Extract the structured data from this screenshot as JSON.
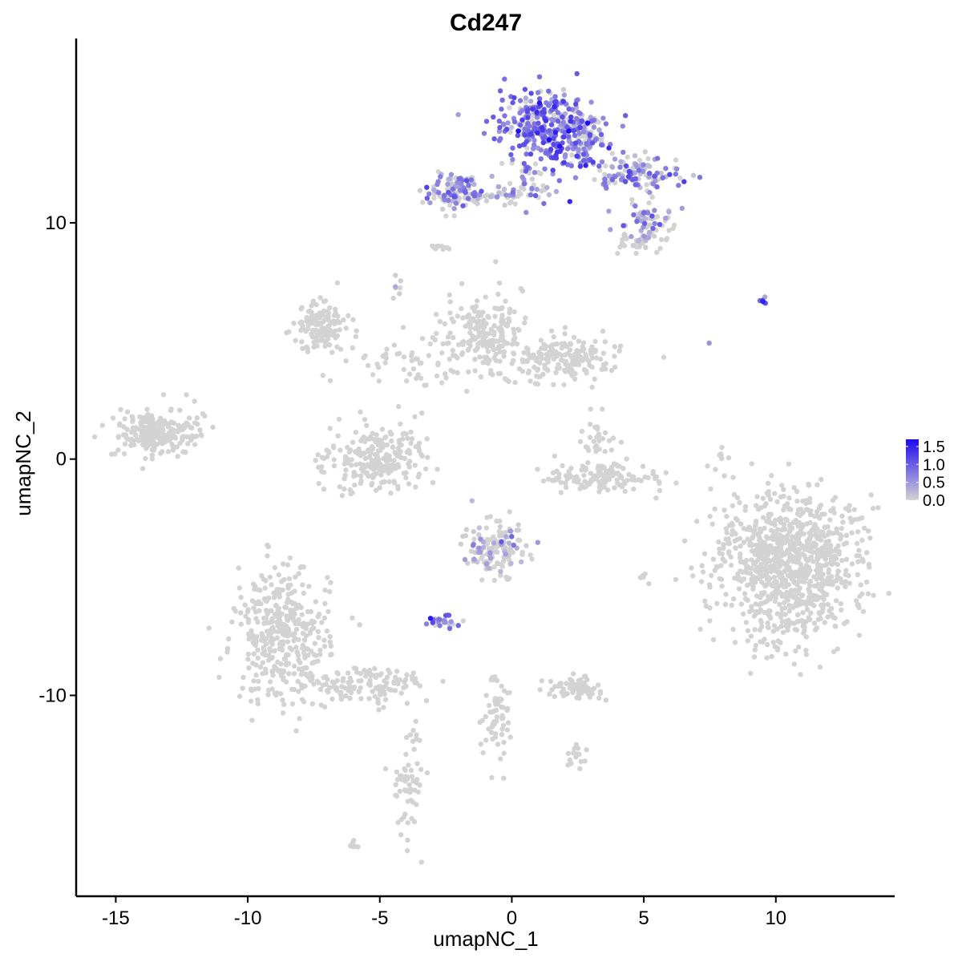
{
  "chart_data": {
    "type": "scatter",
    "title": "Cd247",
    "xlabel": "umapNC_1",
    "ylabel": "umapNC_2",
    "xlim": [
      -16.5,
      14.5
    ],
    "ylim": [
      -18.5,
      17.8
    ],
    "x_ticks": [
      -15,
      -10,
      -5,
      0,
      5,
      10
    ],
    "x_tick_labels": [
      "-15",
      "-10",
      "-5",
      "0",
      "5",
      "10"
    ],
    "y_ticks": [
      -10,
      0,
      10
    ],
    "y_tick_labels": [
      "-10",
      "0",
      "10"
    ],
    "grid": false,
    "legend_position": "right",
    "color_scale": {
      "low_color": "#d3d3d3",
      "high_color": "#1f0af0",
      "min": 0.0,
      "max": 1.7,
      "ticks": [
        1.5,
        1.0,
        0.5,
        0.0
      ],
      "tick_labels": [
        "1.5",
        "1.0",
        "0.5",
        "0.0"
      ]
    },
    "clusters": [
      {
        "cx": 1.2,
        "cy": 14.2,
        "sx": 0.8,
        "sy": 0.8,
        "n": 260,
        "expr": 0.85
      },
      {
        "cx": 2.5,
        "cy": 13.6,
        "sx": 0.6,
        "sy": 0.7,
        "n": 120,
        "expr": 0.8
      },
      {
        "cx": 4.5,
        "cy": 12.0,
        "sx": 0.9,
        "sy": 0.4,
        "n": 120,
        "expr": 0.55
      },
      {
        "cx": 5.2,
        "cy": 10.1,
        "sx": 0.6,
        "sy": 0.4,
        "n": 60,
        "expr": 0.6
      },
      {
        "cx": 4.8,
        "cy": 9.2,
        "sx": 0.4,
        "sy": 0.3,
        "n": 30,
        "expr": 0.1
      },
      {
        "cx": -2.3,
        "cy": 11.4,
        "sx": 0.5,
        "sy": 0.4,
        "n": 90,
        "expr": 0.55
      },
      {
        "cx": -0.8,
        "cy": 11.2,
        "sx": 0.9,
        "sy": 0.2,
        "n": 50,
        "expr": 0.5
      },
      {
        "cx": 0.6,
        "cy": 11.5,
        "sx": 0.5,
        "sy": 0.6,
        "n": 40,
        "expr": 0.55
      },
      {
        "cx": 9.5,
        "cy": 6.7,
        "sx": 0.1,
        "sy": 0.05,
        "n": 6,
        "expr": 1.2
      },
      {
        "cx": 7.5,
        "cy": 4.9,
        "sx": 0.05,
        "sy": 0.05,
        "n": 1,
        "expr": 0.9
      },
      {
        "cx": -7.2,
        "cy": 5.5,
        "sx": 0.5,
        "sy": 0.5,
        "n": 130,
        "expr": 0.0
      },
      {
        "cx": -1.0,
        "cy": 5.3,
        "sx": 0.8,
        "sy": 0.8,
        "n": 200,
        "expr": 0.0
      },
      {
        "cx": 2.0,
        "cy": 4.2,
        "sx": 1.0,
        "sy": 0.5,
        "n": 170,
        "expr": 0.0
      },
      {
        "cx": -3.8,
        "cy": 4.0,
        "sx": 1.2,
        "sy": 0.6,
        "n": 60,
        "expr": 0.0
      },
      {
        "cx": -5.2,
        "cy": 0.0,
        "sx": 1.0,
        "sy": 0.7,
        "n": 240,
        "expr": 0.0
      },
      {
        "cx": -13.6,
        "cy": 1.1,
        "sx": 0.7,
        "sy": 0.5,
        "n": 200,
        "expr": 0.0
      },
      {
        "cx": -12.3,
        "cy": 1.5,
        "sx": 0.4,
        "sy": 0.6,
        "n": 30,
        "expr": 0.0
      },
      {
        "cx": 3.3,
        "cy": -0.8,
        "sx": 1.1,
        "sy": 0.3,
        "n": 130,
        "expr": 0.0
      },
      {
        "cx": 3.2,
        "cy": 0.9,
        "sx": 0.3,
        "sy": 0.5,
        "n": 30,
        "expr": 0.0
      },
      {
        "cx": 10.5,
        "cy": -4.5,
        "sx": 1.3,
        "sy": 1.5,
        "n": 1000,
        "expr": 0.0
      },
      {
        "cx": -0.6,
        "cy": -3.8,
        "sx": 0.6,
        "sy": 0.6,
        "n": 150,
        "expr": 0.15
      },
      {
        "cx": -2.6,
        "cy": -6.9,
        "sx": 0.25,
        "sy": 0.15,
        "n": 25,
        "expr": 0.65
      },
      {
        "cx": -8.7,
        "cy": -7.5,
        "sx": 0.9,
        "sy": 1.4,
        "n": 380,
        "expr": 0.0
      },
      {
        "cx": -5.5,
        "cy": -9.6,
        "sx": 1.2,
        "sy": 0.4,
        "n": 130,
        "expr": 0.0
      },
      {
        "cx": 2.4,
        "cy": -9.7,
        "sx": 0.5,
        "sy": 0.2,
        "n": 80,
        "expr": 0.0
      },
      {
        "cx": -3.9,
        "cy": -13.5,
        "sx": 0.3,
        "sy": 1.2,
        "n": 60,
        "expr": 0.0
      },
      {
        "cx": -0.5,
        "cy": -10.7,
        "sx": 0.3,
        "sy": 1.0,
        "n": 60,
        "expr": 0.0
      },
      {
        "cx": 2.4,
        "cy": -12.6,
        "sx": 0.2,
        "sy": 0.2,
        "n": 15,
        "expr": 0.0
      },
      {
        "cx": 5.0,
        "cy": -5.0,
        "sx": 0.1,
        "sy": 0.1,
        "n": 6,
        "expr": 0.0
      },
      {
        "cx": 8.0,
        "cy": 0.0,
        "sx": 0.2,
        "sy": 0.4,
        "n": 10,
        "expr": 0.0
      },
      {
        "cx": -6.0,
        "cy": -16.3,
        "sx": 0.1,
        "sy": 0.1,
        "n": 6,
        "expr": 0.0
      },
      {
        "cx": -2.7,
        "cy": 9.0,
        "sx": 0.2,
        "sy": 0.1,
        "n": 10,
        "expr": 0.0
      },
      {
        "cx": -4.3,
        "cy": 7.2,
        "sx": 0.1,
        "sy": 0.3,
        "n": 8,
        "expr": 0.2
      }
    ]
  }
}
